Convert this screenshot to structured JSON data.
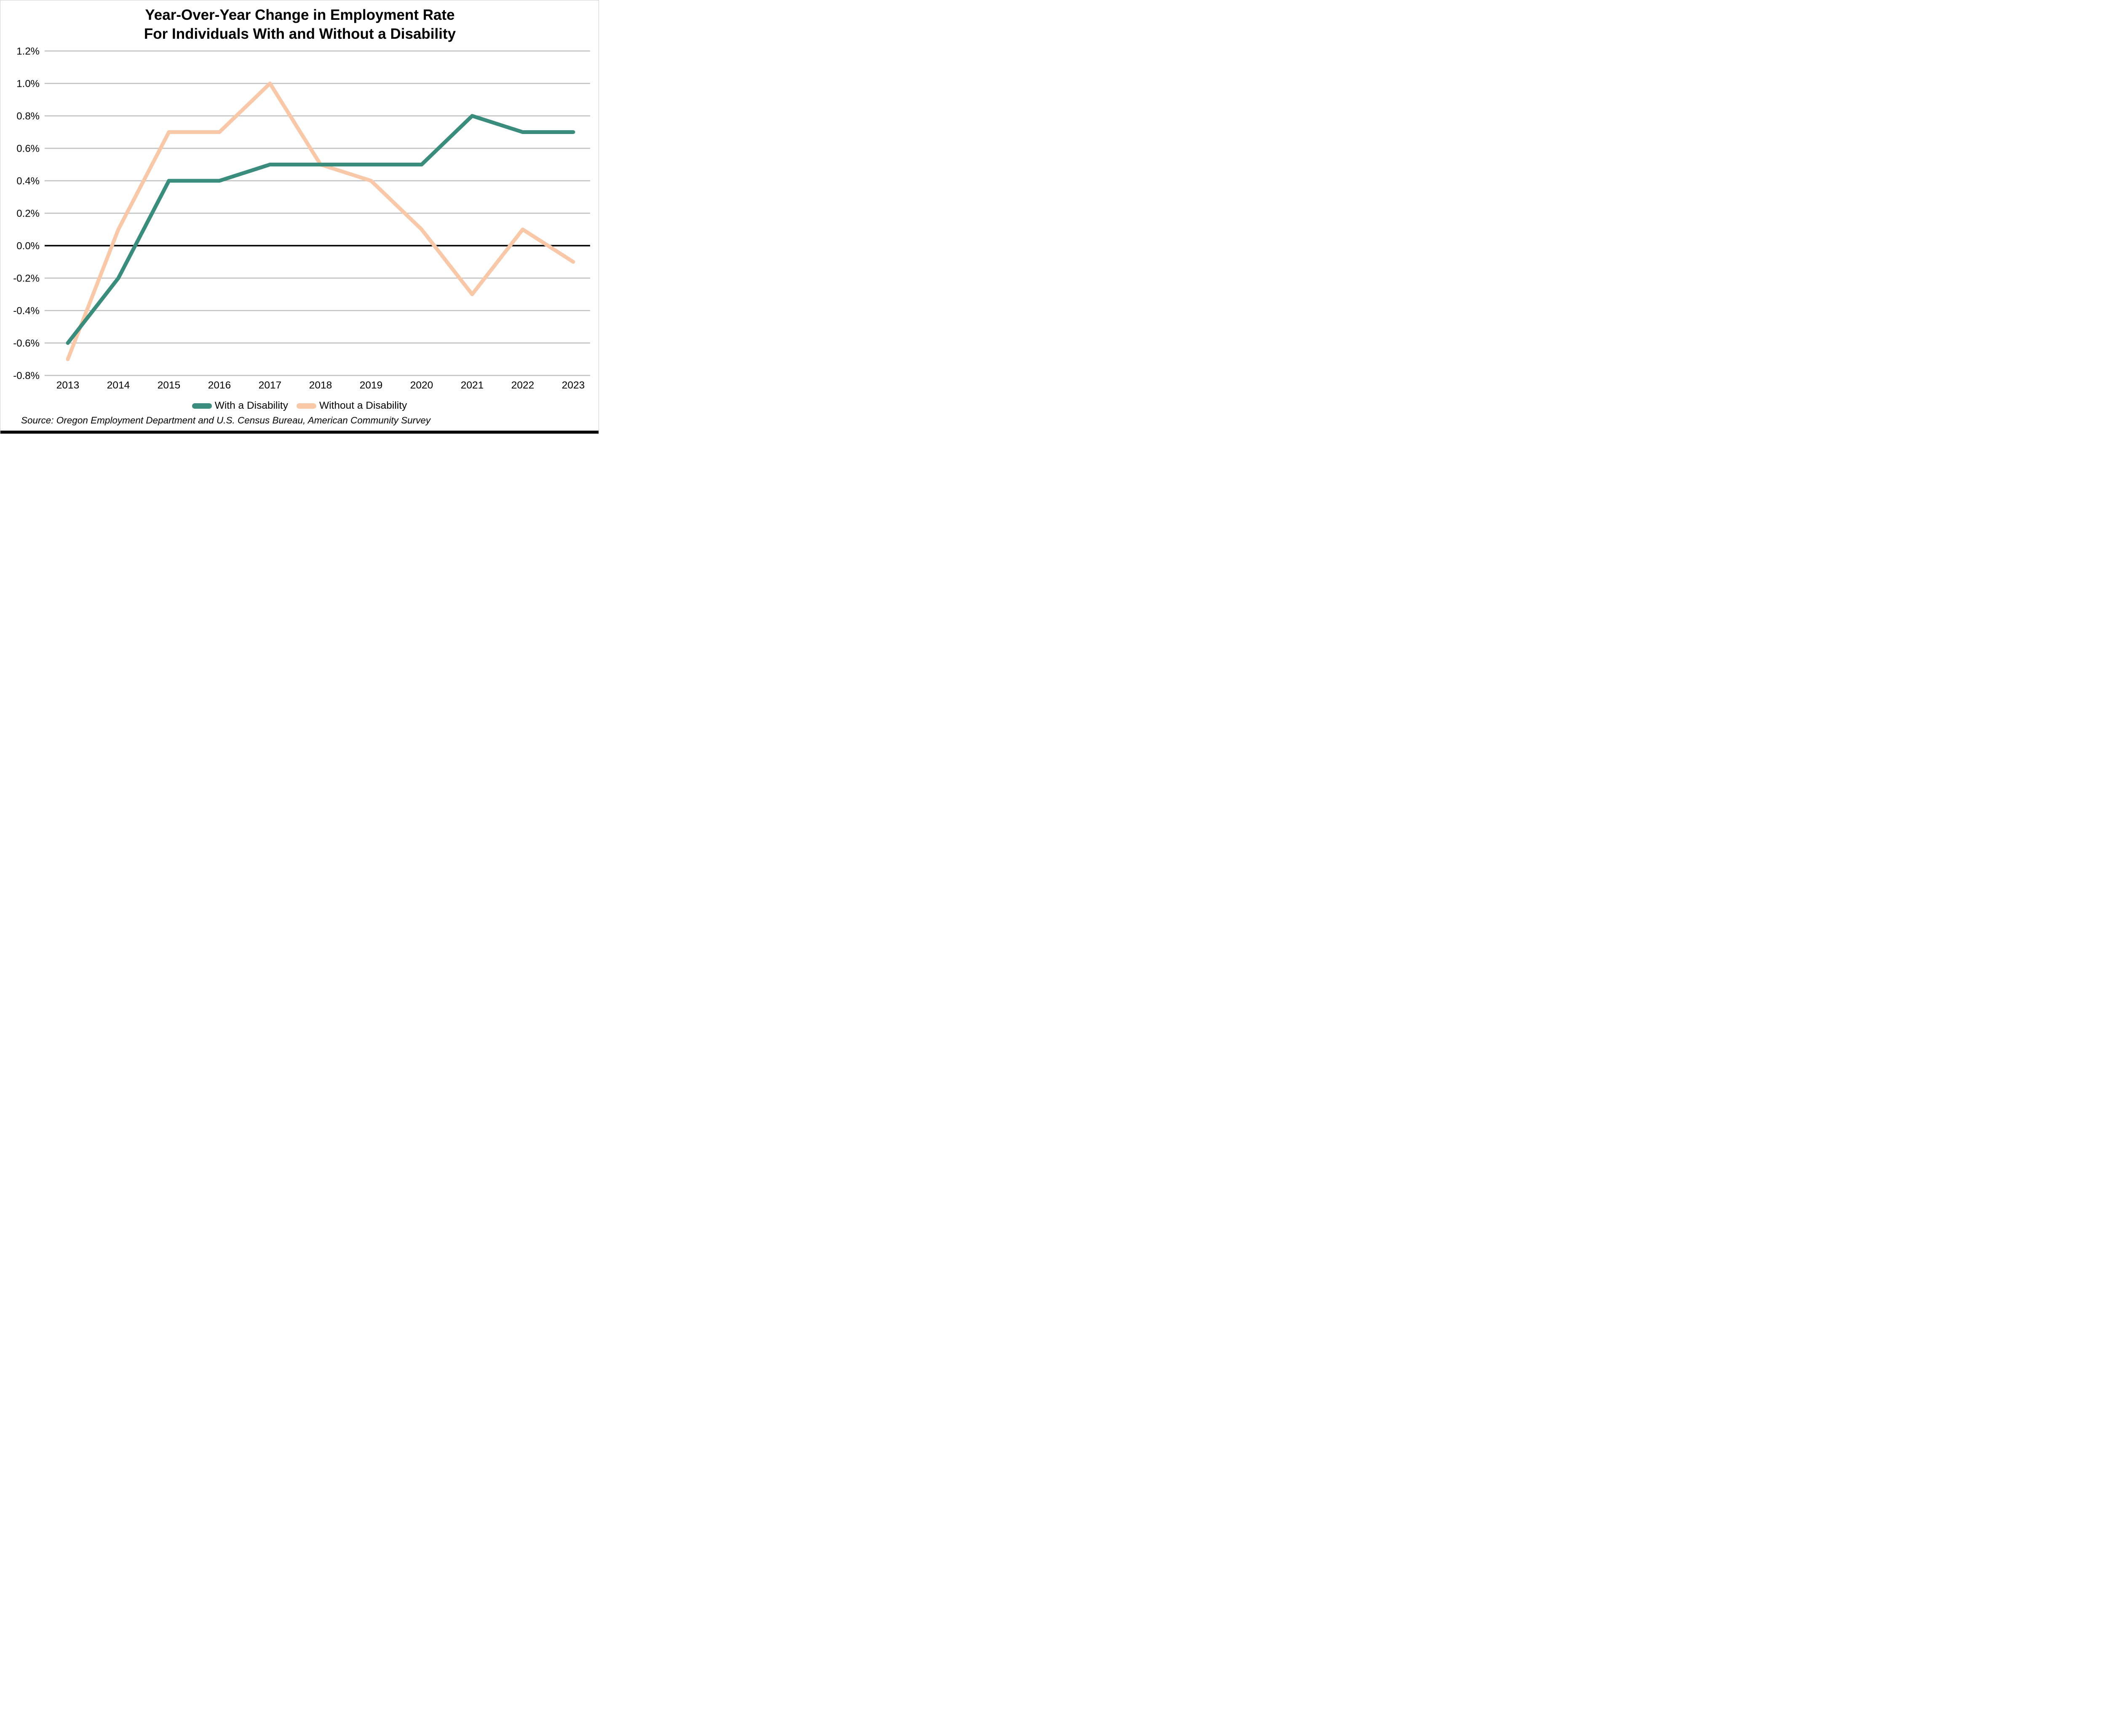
{
  "page": {
    "title_line1": "Year-Over-Year Change in Employment Rate",
    "title_line2": "For Individuals With and Without a Disability",
    "source": "Source: Oregon Employment Department and U.S. Census Bureau, American Community Survey"
  },
  "colors": {
    "with_disability_line": "#3A8C7C",
    "without_disability_line": "#F8C8A8",
    "gridline": "#BFBFBF",
    "zero_line": "#000000",
    "text": "#000000"
  },
  "chart_data": {
    "type": "line",
    "title": "Year-Over-Year Change in Employment Rate For Individuals With and Without a Disability",
    "xlabel": "",
    "ylabel": "",
    "x": [
      2013,
      2014,
      2015,
      2016,
      2017,
      2018,
      2019,
      2020,
      2021,
      2022,
      2023
    ],
    "series": [
      {
        "name": "With a Disability",
        "color": "#3A8C7C",
        "values": [
          -0.6,
          -0.2,
          0.4,
          0.4,
          0.5,
          0.5,
          0.5,
          0.5,
          0.8,
          0.7,
          0.7
        ]
      },
      {
        "name": "Without a Disability",
        "color": "#F8C8A8",
        "values": [
          -0.7,
          0.1,
          0.7,
          0.7,
          1.0,
          0.5,
          0.4,
          0.1,
          -0.3,
          0.1,
          -0.1
        ]
      }
    ],
    "unit": "%",
    "ylim": [
      -0.8,
      1.2
    ],
    "ytick_step": 0.2,
    "ytick_labels": [
      "1.2%",
      "1.0%",
      "0.8%",
      "0.6%",
      "0.4%",
      "0.2%",
      "0.0%",
      "-0.2%",
      "-0.4%",
      "-0.6%",
      "-0.8%"
    ],
    "grid": true,
    "zero_line": true,
    "legend_position": "bottom"
  }
}
